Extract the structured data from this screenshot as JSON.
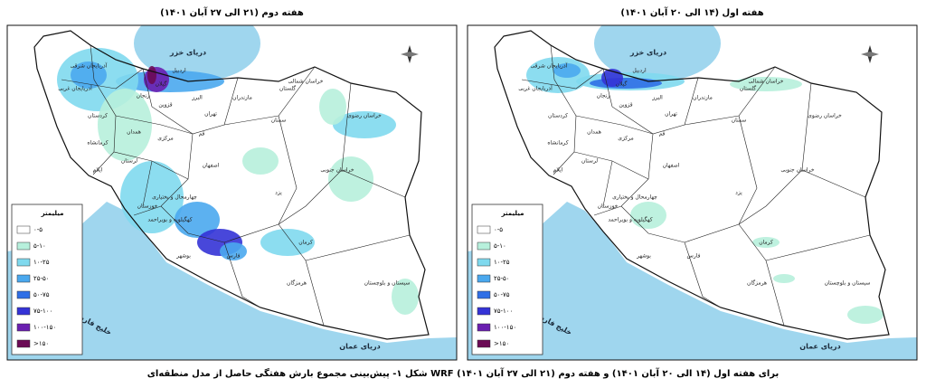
{
  "maps": [
    {
      "title": "هفته اول (۱۴ الی ۲۰ آبان ۱۴۰۱)"
    },
    {
      "title": "هفته دوم (۲۱ الی ۲۷ آبان ۱۴۰۱)"
    }
  ],
  "legend": {
    "title": "میلیمتر",
    "classes": [
      {
        "label": "۰-۵",
        "color": "#ffffff"
      },
      {
        "label": "۵-۱۰",
        "color": "#b7f0dc"
      },
      {
        "label": "۱۰-۲۵",
        "color": "#7fd9ee"
      },
      {
        "label": "۲۵-۵۰",
        "color": "#4aa8ee"
      },
      {
        "label": "۵۰-۷۵",
        "color": "#2f6fe6"
      },
      {
        "label": "۷۵-۱۰۰",
        "color": "#3433d6"
      },
      {
        "label": "۱۰۰-۱۵۰",
        "color": "#6a1fb0"
      },
      {
        "label": ">۱۵۰",
        "color": "#6b0a55"
      }
    ]
  },
  "places": [
    "دریای خزر",
    "خلیج فارس",
    "دریای عمان",
    "گلستان",
    "خراسان شمالی",
    "خراسان رضوی",
    "سمنان",
    "تهران",
    "قزوین",
    "زنجان",
    "اردبیل",
    "آذربایجان شرقی",
    "آذربایجان غربی",
    "کردستان",
    "همدان",
    "کرمانشاه",
    "ایلام",
    "لرستان",
    "مرکزی",
    "قم",
    "اصفهان",
    "خوزستان",
    "چهارمحال و بختیاری",
    "کهگیلویه و بویراحمد",
    "فارس",
    "بوشهر",
    "هرمزگان",
    "کرمان",
    "یزد",
    "خراسان جنوبی",
    "سیستان و بلوچستان",
    "مازندران",
    "گیلان",
    "البرز"
  ],
  "caption": "شکل ۱- پیش‌بینی مجموع بارش هفتگی حاصل از مدل منطقه‌ای WRF برای هفته اول (۱۴ الی ۲۰ آبان ۱۴۰۱) و هفته دوم (۲۱ الی ۲۷ آبان ۱۴۰۱)"
}
